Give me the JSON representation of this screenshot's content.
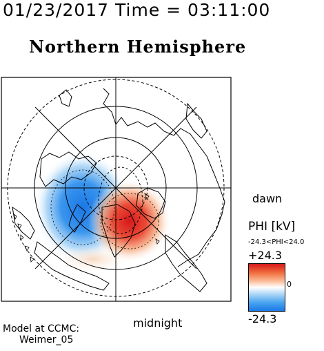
{
  "header": {
    "timestamp": "01/23/2017 Time = 03:11:00",
    "title": "Northern Hemisphere"
  },
  "map": {
    "label_dawn": "dawn",
    "label_midnight": "midnight"
  },
  "colorbar": {
    "title": "PHI [kV]",
    "range_text": "-24.3<PHI<24.0",
    "max_label": "+24.3",
    "min_label": "-24.3",
    "zero_label": "0",
    "colors": {
      "positive": "#d7191c",
      "negative": "#1a78e6",
      "neutral": "#ffffff"
    }
  },
  "credits": {
    "line1": "Model at CCMC:",
    "line2": "Weimer_05"
  }
}
